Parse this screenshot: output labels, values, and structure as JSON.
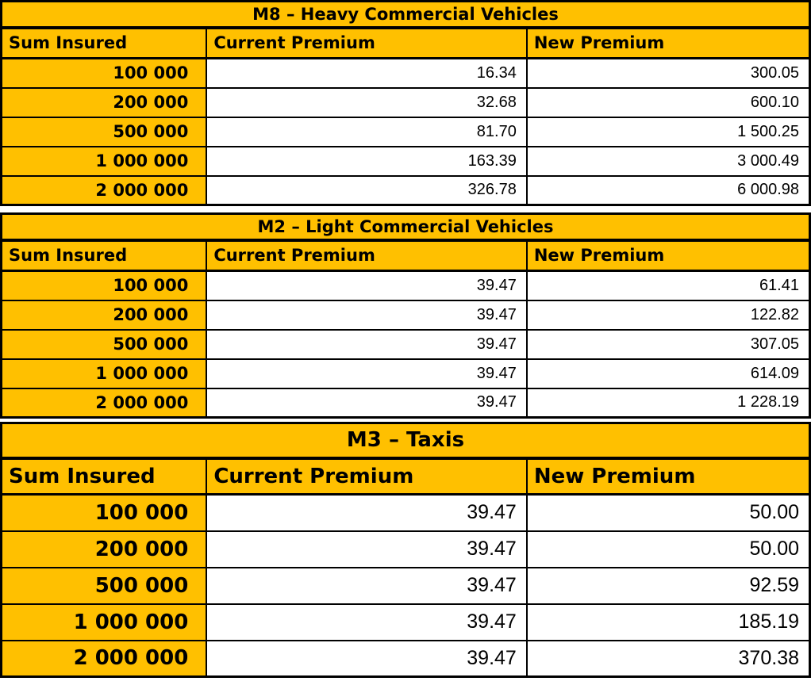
{
  "tables": [
    {
      "title": "M8 – Heavy Commercial Vehicles",
      "columns": [
        "Sum Insured",
        "Current Premium",
        "New Premium"
      ],
      "rows": [
        [
          "100 000",
          "16.34",
          "300.05"
        ],
        [
          "200 000",
          "32.68",
          "600.10"
        ],
        [
          "500 000",
          "81.70",
          "1 500.25"
        ],
        [
          "1 000 000",
          "163.39",
          "3 000.49"
        ],
        [
          "2 000 000",
          "326.78",
          "6 000.98"
        ]
      ]
    },
    {
      "title": "M2 – Light Commercial Vehicles",
      "columns": [
        "Sum Insured",
        "Current Premium",
        "New Premium"
      ],
      "rows": [
        [
          "100 000",
          "39.47",
          "61.41"
        ],
        [
          "200 000",
          "39.47",
          "122.82"
        ],
        [
          "500 000",
          "39.47",
          "307.05"
        ],
        [
          "1 000 000",
          "39.47",
          "614.09"
        ],
        [
          "2 000 000",
          "39.47",
          "1 228.19"
        ]
      ]
    },
    {
      "title": "M3 – Taxis",
      "columns": [
        "Sum Insured",
        "Current Premium",
        "New Premium"
      ],
      "rows": [
        [
          "100 000",
          "39.47",
          "50.00"
        ],
        [
          "200 000",
          "39.47",
          "50.00"
        ],
        [
          "500 000",
          "39.47",
          "92.59"
        ],
        [
          "1 000 000",
          "39.47",
          "185.19"
        ],
        [
          "2 000 000",
          "39.47",
          "370.38"
        ]
      ]
    }
  ],
  "colors": {
    "header_fill": "#FFC000",
    "cell_fill": "#FFFFFF",
    "border": "#000000",
    "text": "#000000"
  }
}
